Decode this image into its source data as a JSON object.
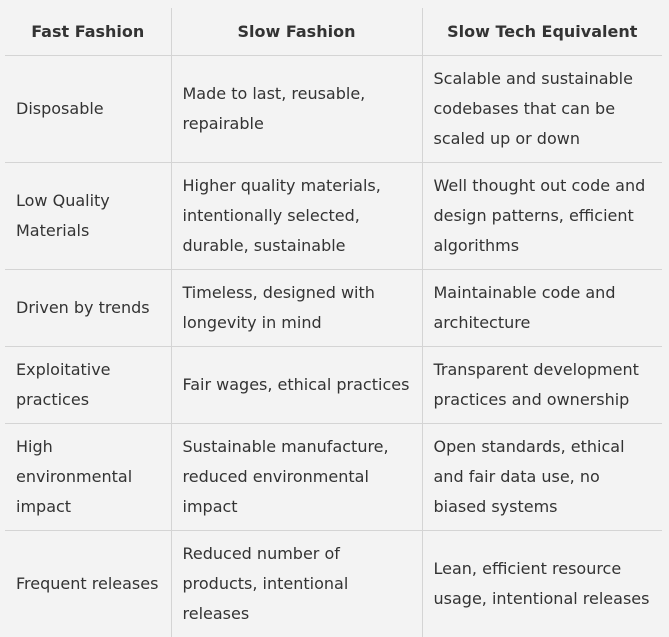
{
  "table": {
    "headers": [
      "Fast Fashion",
      "Slow Fashion",
      "Slow Tech Equivalent"
    ],
    "rows": [
      [
        "Disposable",
        "Made to last, reusable, repairable",
        "Scalable and sustainable codebases that can be scaled up or down"
      ],
      [
        "Low Quality Materials",
        "Higher quality materials, intentionally selected, durable, sustainable",
        "Well thought out code and design patterns, efficient algorithms"
      ],
      [
        "Driven by trends",
        "Timeless, designed with longevity in mind",
        "Maintainable code and architecture"
      ],
      [
        "Exploitative practices",
        "Fair wages, ethical practices",
        "Transparent development practices and ownership"
      ],
      [
        "High environmental impact",
        "Sustainable manufacture, reduced environmental impact",
        "Open standards, ethical and fair data use, no biased systems"
      ],
      [
        "Frequent releases",
        "Reduced number of products, intentional releases",
        "Lean, efficient resource usage, intentional releases"
      ]
    ]
  }
}
